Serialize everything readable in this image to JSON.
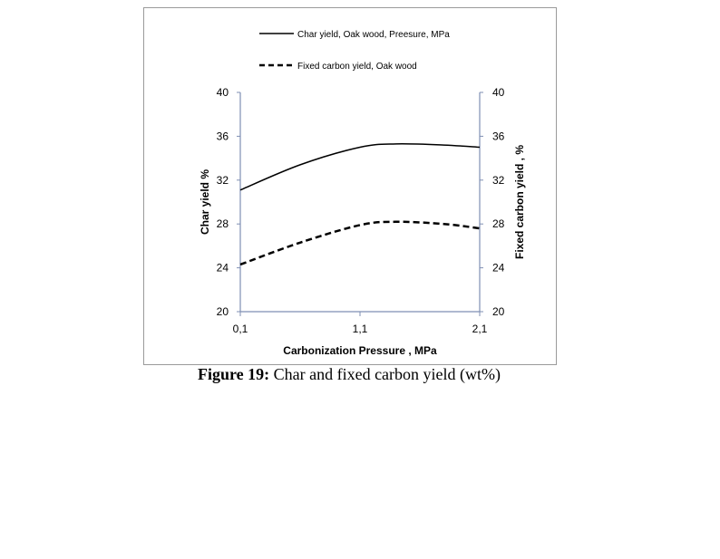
{
  "figure": {
    "caption_label": "Figure 19:",
    "caption_text": " Char and fixed carbon yield (wt%)"
  },
  "chart_data": {
    "type": "line",
    "title": "",
    "xlabel": "Carbonization Pressure , MPa",
    "ylabel_left": "Char yield  %",
    "ylabel_right": "Fixed carbon yield , %",
    "x_ticks": [
      0.1,
      1.1,
      2.1
    ],
    "x_tick_labels": [
      "0,1",
      "1,1",
      "2,1"
    ],
    "xlim": [
      0.1,
      2.1
    ],
    "ylim_left": [
      20,
      40
    ],
    "ylim_right": [
      20,
      40
    ],
    "y_ticks": [
      20,
      24,
      28,
      32,
      36,
      40
    ],
    "y_tick_labels": [
      "20",
      "24",
      "28",
      "32",
      "36",
      "40"
    ],
    "grid": false,
    "legend_position": "top",
    "series": [
      {
        "name": "Char yield, Oak wood, Preesure, MPa",
        "axis": "left",
        "style": "solid",
        "color": "#000000",
        "x": [
          0.1,
          0.6,
          1.1,
          1.4,
          1.8,
          2.1
        ],
        "values": [
          31.1,
          33.4,
          35.0,
          35.3,
          35.2,
          35.0
        ]
      },
      {
        "name": "Fixed carbon yield, Oak wood",
        "axis": "right",
        "style": "dashed",
        "color": "#000000",
        "x": [
          0.1,
          0.6,
          1.1,
          1.4,
          1.8,
          2.1
        ],
        "values": [
          24.3,
          26.3,
          27.9,
          28.2,
          28.0,
          27.6
        ]
      }
    ]
  },
  "colors": {
    "axis": "#7f8fb3",
    "frame": "#9a9a9a",
    "series": "#000000"
  }
}
